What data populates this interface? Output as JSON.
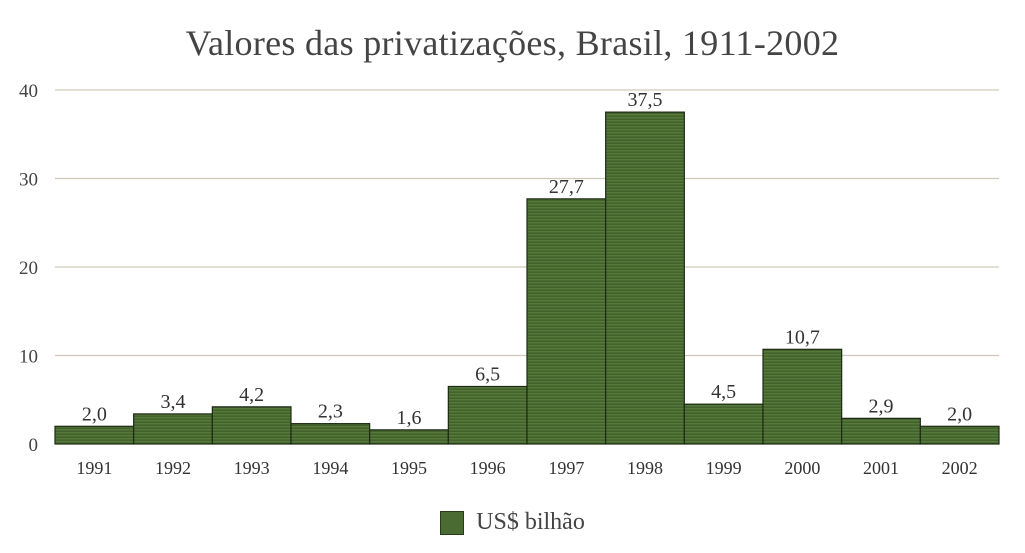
{
  "chart_data": {
    "type": "bar",
    "title": "Valores das privatizações, Brasil, 1911-2002",
    "categories": [
      "1991",
      "1992",
      "1993",
      "1994",
      "1995",
      "1996",
      "1997",
      "1998",
      "1999",
      "2000",
      "2001",
      "2002"
    ],
    "series": [
      {
        "name": "US$ bilhão",
        "values": [
          2.0,
          3.4,
          4.2,
          2.3,
          1.6,
          6.5,
          27.7,
          37.5,
          4.5,
          10.7,
          2.9,
          2.0
        ],
        "labels": [
          "2,0",
          "3,4",
          "4,2",
          "2,3",
          "1,6",
          "6,5",
          "27,7",
          "37,5",
          "4,5",
          "10,7",
          "2,9",
          "2,0"
        ]
      }
    ],
    "ylim": [
      0,
      40
    ],
    "yticks": [
      0,
      10,
      20,
      30,
      40
    ],
    "grid": true,
    "legend": "bottom",
    "colors": {
      "bar": "#4a6b32",
      "bar_edge": "#1e2a14",
      "grid": "#cfcab8"
    }
  }
}
